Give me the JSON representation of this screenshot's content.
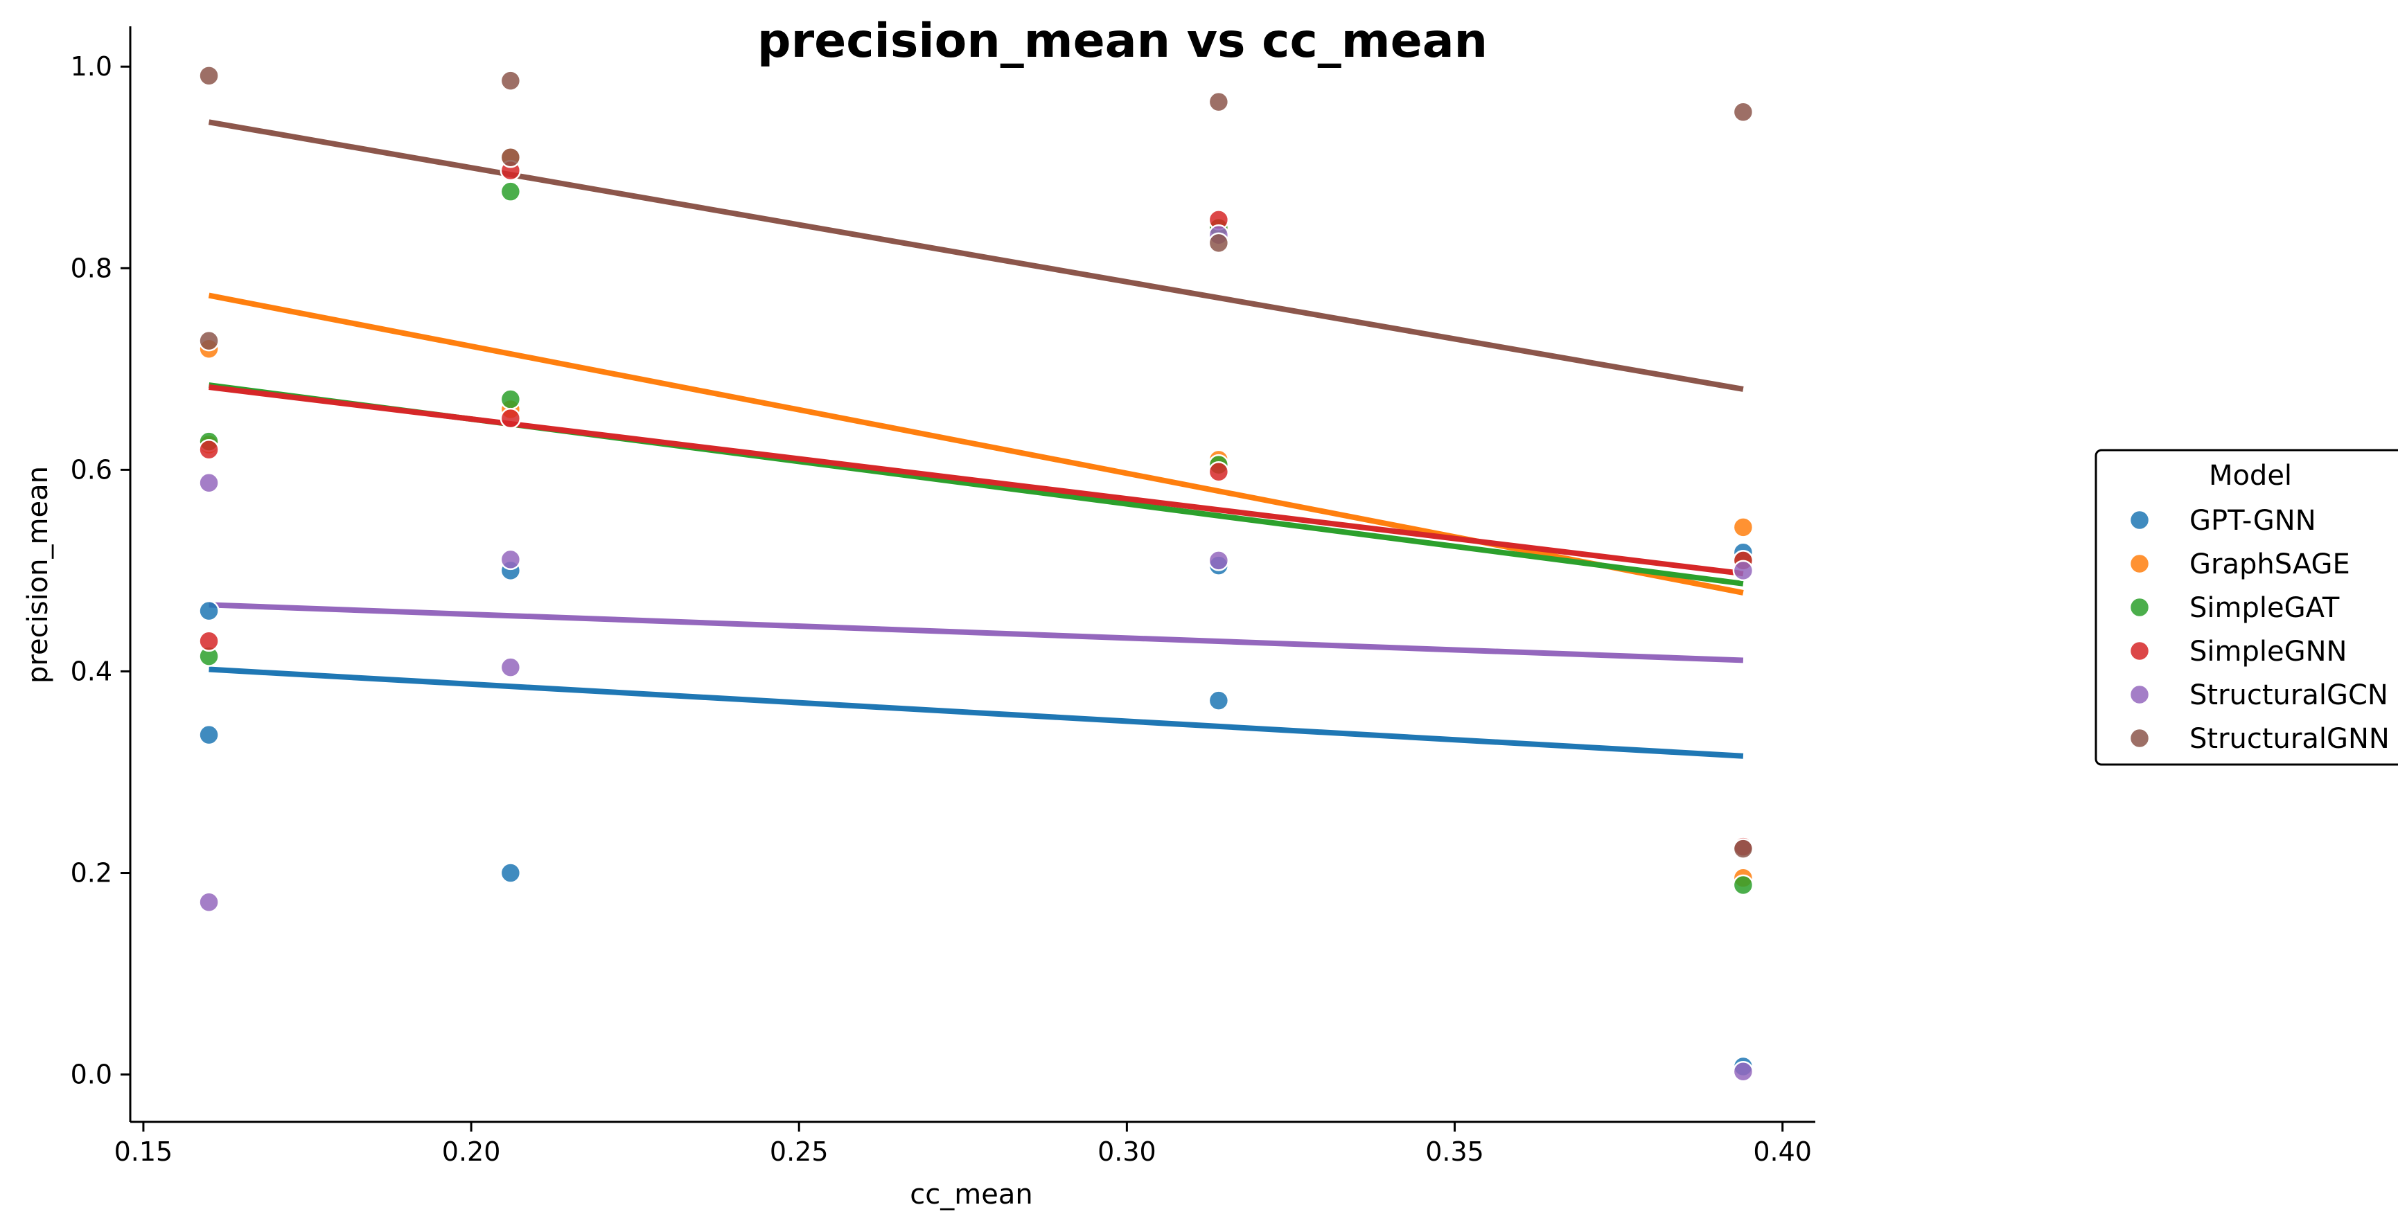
{
  "chart_data": {
    "type": "scatter",
    "title": "precision_mean vs cc_mean",
    "xlabel": "cc_mean",
    "ylabel": "precision_mean",
    "xlim": [
      0.148,
      0.405
    ],
    "ylim": [
      -0.047,
      1.04
    ],
    "x_ticks": [
      0.15,
      0.2,
      0.25,
      0.3,
      0.35,
      0.4
    ],
    "x_tick_labels": [
      "0.15",
      "0.20",
      "0.25",
      "0.30",
      "0.35",
      "0.40"
    ],
    "y_ticks": [
      0.0,
      0.2,
      0.4,
      0.6,
      0.8,
      1.0
    ],
    "y_tick_labels": [
      "0.0",
      "0.2",
      "0.4",
      "0.6",
      "0.8",
      "1.0"
    ],
    "grid": false,
    "legend": {
      "title": "Model",
      "placement": "center-right, outside"
    },
    "series": [
      {
        "name": "GPT-GNN",
        "color": "#1f77b4",
        "points": [
          [
            0.16,
            0.46
          ],
          [
            0.16,
            0.337
          ],
          [
            0.206,
            0.5
          ],
          [
            0.206,
            0.2
          ],
          [
            0.314,
            0.505
          ],
          [
            0.314,
            0.371
          ],
          [
            0.394,
            0.518
          ],
          [
            0.394,
            0.008
          ]
        ],
        "trend": [
          [
            0.16,
            0.402
          ],
          [
            0.394,
            0.316
          ]
        ]
      },
      {
        "name": "GraphSAGE",
        "color": "#ff7f0e",
        "points": [
          [
            0.16,
            0.72
          ],
          [
            0.16,
            0.625
          ],
          [
            0.206,
            0.91
          ],
          [
            0.206,
            0.66
          ],
          [
            0.314,
            0.84
          ],
          [
            0.314,
            0.61
          ],
          [
            0.394,
            0.543
          ],
          [
            0.394,
            0.195
          ]
        ],
        "trend": [
          [
            0.16,
            0.773
          ],
          [
            0.394,
            0.478
          ]
        ]
      },
      {
        "name": "SimpleGAT",
        "color": "#2ca02c",
        "points": [
          [
            0.16,
            0.628
          ],
          [
            0.16,
            0.415
          ],
          [
            0.206,
            0.876
          ],
          [
            0.206,
            0.67
          ],
          [
            0.314,
            0.84
          ],
          [
            0.314,
            0.605
          ],
          [
            0.394,
            0.51
          ],
          [
            0.394,
            0.188
          ]
        ],
        "trend": [
          [
            0.16,
            0.684
          ],
          [
            0.394,
            0.487
          ]
        ]
      },
      {
        "name": "SimpleGNN",
        "color": "#d62728",
        "points": [
          [
            0.16,
            0.62
          ],
          [
            0.16,
            0.43
          ],
          [
            0.206,
            0.897
          ],
          [
            0.206,
            0.651
          ],
          [
            0.314,
            0.848
          ],
          [
            0.314,
            0.598
          ],
          [
            0.394,
            0.51
          ],
          [
            0.394,
            0.226
          ]
        ],
        "trend": [
          [
            0.16,
            0.682
          ],
          [
            0.394,
            0.497
          ]
        ]
      },
      {
        "name": "StructuralGCN",
        "color": "#9467bd",
        "points": [
          [
            0.16,
            0.587
          ],
          [
            0.16,
            0.171
          ],
          [
            0.206,
            0.511
          ],
          [
            0.206,
            0.404
          ],
          [
            0.314,
            0.51
          ],
          [
            0.314,
            0.833
          ],
          [
            0.394,
            0.5
          ],
          [
            0.394,
            0.003
          ]
        ],
        "trend": [
          [
            0.16,
            0.466
          ],
          [
            0.394,
            0.411
          ]
        ]
      },
      {
        "name": "StructuralGNN",
        "color": "#8c564b",
        "points": [
          [
            0.16,
            0.991
          ],
          [
            0.16,
            0.728
          ],
          [
            0.206,
            0.986
          ],
          [
            0.206,
            0.91
          ],
          [
            0.314,
            0.965
          ],
          [
            0.314,
            0.825
          ],
          [
            0.394,
            0.955
          ],
          [
            0.394,
            0.224
          ]
        ],
        "trend": [
          [
            0.16,
            0.945
          ],
          [
            0.394,
            0.68
          ]
        ]
      }
    ]
  }
}
